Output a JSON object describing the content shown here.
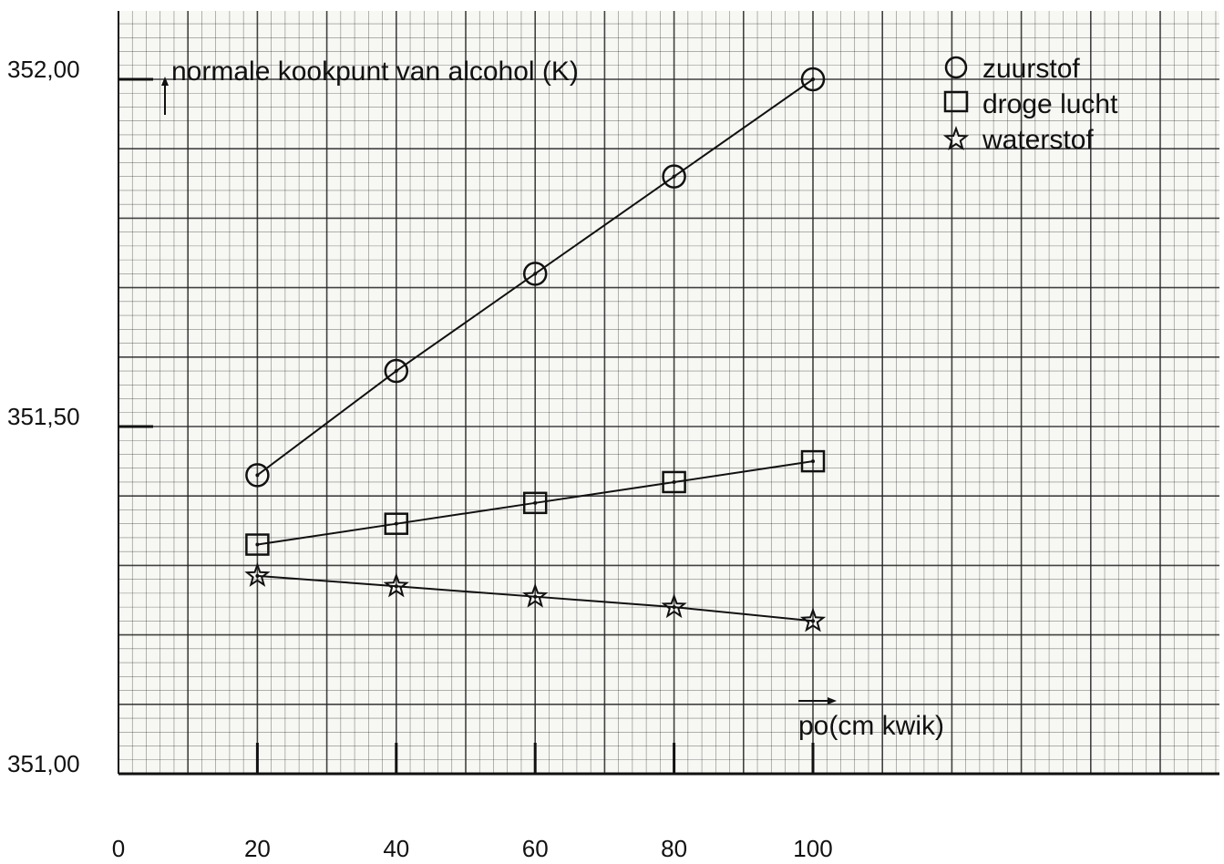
{
  "chart_data": {
    "type": "line",
    "ylabel": "normale kookpunt van alcohol (K)",
    "xlabel": "po(cm kwik)",
    "x": [
      20,
      40,
      60,
      80,
      100
    ],
    "x_ticks": [
      0,
      20,
      40,
      60,
      80,
      100
    ],
    "y_ticks": [
      351.0,
      351.5,
      352.0
    ],
    "y_tick_labels": [
      "351,00",
      "351,50",
      "352,00"
    ],
    "x_tick_labels": [
      "0",
      "20",
      "40",
      "60",
      "80",
      "100"
    ],
    "xlim": [
      0,
      100
    ],
    "ylim": [
      351.0,
      352.0
    ],
    "grid": true,
    "legend_position": "top-right",
    "series": [
      {
        "name": "zuurstof",
        "marker": "circle",
        "values": [
          351.43,
          351.58,
          351.72,
          351.86,
          352.0
        ]
      },
      {
        "name": "droge lucht",
        "marker": "square",
        "values": [
          351.33,
          351.36,
          351.39,
          351.42,
          351.45
        ]
      },
      {
        "name": "waterstof",
        "marker": "star",
        "values": [
          351.285,
          351.27,
          351.255,
          351.24,
          351.22
        ]
      }
    ]
  }
}
